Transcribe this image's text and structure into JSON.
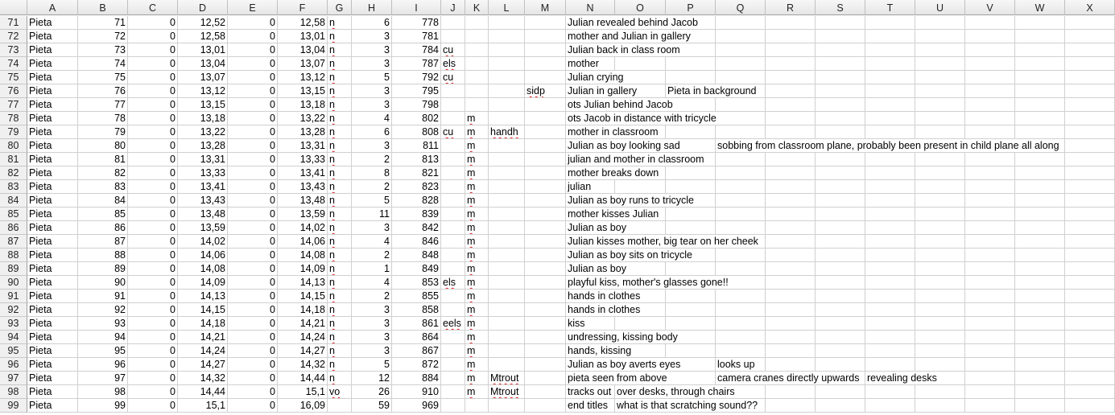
{
  "columns": [
    "A",
    "B",
    "C",
    "D",
    "E",
    "F",
    "G",
    "H",
    "I",
    "J",
    "K",
    "L",
    "M",
    "N",
    "O",
    "P",
    "Q",
    "R",
    "S",
    "T",
    "U",
    "V",
    "W",
    "X"
  ],
  "rows": [
    {
      "n": "71",
      "c": {
        "A": "Pieta",
        "B": "71",
        "C": "0",
        "D": "12,52",
        "E": "0",
        "F": "12,58",
        "G": "n",
        "H": "6",
        "I": "778",
        "N": "Julian revealed behind Jacob"
      }
    },
    {
      "n": "72",
      "c": {
        "A": "Pieta",
        "B": "72",
        "C": "0",
        "D": "12,58",
        "E": "0",
        "F": "13,01",
        "G": "n",
        "H": "3",
        "I": "781",
        "N": "mother and Julian in gallery"
      }
    },
    {
      "n": "73",
      "c": {
        "A": "Pieta",
        "B": "73",
        "C": "0",
        "D": "13,01",
        "E": "0",
        "F": "13,04",
        "G": "n",
        "H": "3",
        "I": "784",
        "J": "cu",
        "N": "Julian back in class room"
      }
    },
    {
      "n": "74",
      "c": {
        "A": "Pieta",
        "B": "74",
        "C": "0",
        "D": "13,04",
        "E": "0",
        "F": "13,07",
        "G": "n",
        "H": "3",
        "I": "787",
        "J": "els",
        "N": "mother"
      }
    },
    {
      "n": "75",
      "c": {
        "A": "Pieta",
        "B": "75",
        "C": "0",
        "D": "13,07",
        "E": "0",
        "F": "13,12",
        "G": "n",
        "H": "5",
        "I": "792",
        "J": "cu",
        "N": "Julian crying"
      }
    },
    {
      "n": "76",
      "c": {
        "A": "Pieta",
        "B": "76",
        "C": "0",
        "D": "13,12",
        "E": "0",
        "F": "13,15",
        "G": "n",
        "H": "3",
        "I": "795",
        "M": "sidp",
        "N": "Julian in gallery",
        "P": "Pieta in background"
      }
    },
    {
      "n": "77",
      "c": {
        "A": "Pieta",
        "B": "77",
        "C": "0",
        "D": "13,15",
        "E": "0",
        "F": "13,18",
        "G": "n",
        "H": "3",
        "I": "798",
        "N": "ots Julian behind Jacob"
      }
    },
    {
      "n": "78",
      "c": {
        "A": "Pieta",
        "B": "78",
        "C": "0",
        "D": "13,18",
        "E": "0",
        "F": "13,22",
        "G": "n",
        "H": "4",
        "I": "802",
        "K": "m",
        "N": "ots Jacob in distance with tricycle"
      }
    },
    {
      "n": "79",
      "c": {
        "A": "Pieta",
        "B": "79",
        "C": "0",
        "D": "13,22",
        "E": "0",
        "F": "13,28",
        "G": "n",
        "H": "6",
        "I": "808",
        "J": "cu",
        "K": "m",
        "L": "handh",
        "N": "mother in classroom"
      }
    },
    {
      "n": "80",
      "c": {
        "A": "Pieta",
        "B": "80",
        "C": "0",
        "D": "13,28",
        "E": "0",
        "F": "13,31",
        "G": "n",
        "H": "3",
        "I": "811",
        "K": "m",
        "N": "Julian as boy looking sad",
        "Q": "sobbing from classroom plane, probably been present in child plane all along"
      }
    },
    {
      "n": "81",
      "c": {
        "A": "Pieta",
        "B": "81",
        "C": "0",
        "D": "13,31",
        "E": "0",
        "F": "13,33",
        "G": "n",
        "H": "2",
        "I": "813",
        "K": "m",
        "N": "julian and mother in classroom"
      }
    },
    {
      "n": "82",
      "c": {
        "A": "Pieta",
        "B": "82",
        "C": "0",
        "D": "13,33",
        "E": "0",
        "F": "13,41",
        "G": "n",
        "H": "8",
        "I": "821",
        "K": "m",
        "N": "mother breaks down"
      }
    },
    {
      "n": "83",
      "c": {
        "A": "Pieta",
        "B": "83",
        "C": "0",
        "D": "13,41",
        "E": "0",
        "F": "13,43",
        "G": "n",
        "H": "2",
        "I": "823",
        "K": "m",
        "N": "julian"
      }
    },
    {
      "n": "84",
      "c": {
        "A": "Pieta",
        "B": "84",
        "C": "0",
        "D": "13,43",
        "E": "0",
        "F": "13,48",
        "G": "n",
        "H": "5",
        "I": "828",
        "K": "m",
        "N": "Julian as boy runs to tricycle"
      }
    },
    {
      "n": "85",
      "c": {
        "A": "Pieta",
        "B": "85",
        "C": "0",
        "D": "13,48",
        "E": "0",
        "F": "13,59",
        "G": "n",
        "H": "11",
        "I": "839",
        "K": "m",
        "N": "mother kisses Julian"
      }
    },
    {
      "n": "86",
      "c": {
        "A": "Pieta",
        "B": "86",
        "C": "0",
        "D": "13,59",
        "E": "0",
        "F": "14,02",
        "G": "n",
        "H": "3",
        "I": "842",
        "K": "m",
        "N": "Julian as boy"
      }
    },
    {
      "n": "87",
      "c": {
        "A": "Pieta",
        "B": "87",
        "C": "0",
        "D": "14,02",
        "E": "0",
        "F": "14,06",
        "G": "n",
        "H": "4",
        "I": "846",
        "K": "m",
        "N": "Julian kisses mother, big tear on her cheek"
      }
    },
    {
      "n": "88",
      "c": {
        "A": "Pieta",
        "B": "88",
        "C": "0",
        "D": "14,06",
        "E": "0",
        "F": "14,08",
        "G": "n",
        "H": "2",
        "I": "848",
        "K": "m",
        "N": "Julian as boy sits on tricycle"
      }
    },
    {
      "n": "89",
      "c": {
        "A": "Pieta",
        "B": "89",
        "C": "0",
        "D": "14,08",
        "E": "0",
        "F": "14,09",
        "G": "n",
        "H": "1",
        "I": "849",
        "K": "m",
        "N": "Julian as boy"
      }
    },
    {
      "n": "90",
      "c": {
        "A": "Pieta",
        "B": "90",
        "C": "0",
        "D": "14,09",
        "E": "0",
        "F": "14,13",
        "G": "n",
        "H": "4",
        "I": "853",
        "J": "els",
        "K": "m",
        "N": "playful kiss, mother's glasses gone!!"
      }
    },
    {
      "n": "91",
      "c": {
        "A": "Pieta",
        "B": "91",
        "C": "0",
        "D": "14,13",
        "E": "0",
        "F": "14,15",
        "G": "n",
        "H": "2",
        "I": "855",
        "K": "m",
        "N": "hands in clothes"
      }
    },
    {
      "n": "92",
      "c": {
        "A": "Pieta",
        "B": "92",
        "C": "0",
        "D": "14,15",
        "E": "0",
        "F": "14,18",
        "G": "n",
        "H": "3",
        "I": "858",
        "K": "m",
        "N": "hands in clothes"
      }
    },
    {
      "n": "93",
      "c": {
        "A": "Pieta",
        "B": "93",
        "C": "0",
        "D": "14,18",
        "E": "0",
        "F": "14,21",
        "G": "n",
        "H": "3",
        "I": "861",
        "J": "eels",
        "K": "m",
        "N": "kiss"
      }
    },
    {
      "n": "94",
      "c": {
        "A": "Pieta",
        "B": "94",
        "C": "0",
        "D": "14,21",
        "E": "0",
        "F": "14,24",
        "G": "n",
        "H": "3",
        "I": "864",
        "K": "m",
        "N": "undressing, kissing body"
      }
    },
    {
      "n": "95",
      "c": {
        "A": "Pieta",
        "B": "95",
        "C": "0",
        "D": "14,24",
        "E": "0",
        "F": "14,27",
        "G": "n",
        "H": "3",
        "I": "867",
        "K": "m",
        "N": "hands, kissing"
      }
    },
    {
      "n": "96",
      "c": {
        "A": "Pieta",
        "B": "96",
        "C": "0",
        "D": "14,27",
        "E": "0",
        "F": "14,32",
        "G": "n",
        "H": "5",
        "I": "872",
        "K": "m",
        "N": "Julian as boy averts eyes",
        "Q": "looks up"
      }
    },
    {
      "n": "97",
      "c": {
        "A": "Pieta",
        "B": "97",
        "C": "0",
        "D": "14,32",
        "E": "0",
        "F": "14,44",
        "G": "n",
        "H": "12",
        "I": "884",
        "K": "m",
        "L": "Mtrout",
        "N": "pieta seen",
        "O": "from above",
        "Q": "camera cranes directly upwards",
        "T": "revealing desks"
      }
    },
    {
      "n": "98",
      "c": {
        "A": "Pieta",
        "B": "98",
        "C": "0",
        "D": "14,44",
        "E": "0",
        "F": "15,1",
        "G": "vo",
        "H": "26",
        "I": "910",
        "K": "m",
        "L": "Mtrout",
        "N": "tracks out",
        "O": "over desks, through chairs"
      }
    },
    {
      "n": "99",
      "c": {
        "A": "Pieta",
        "B": "99",
        "C": "0",
        "D": "15,1",
        "E": "0",
        "F": "16,09",
        "H": "59",
        "I": "969",
        "N": "end titles",
        "O": "what is that scratching sound??"
      }
    }
  ]
}
